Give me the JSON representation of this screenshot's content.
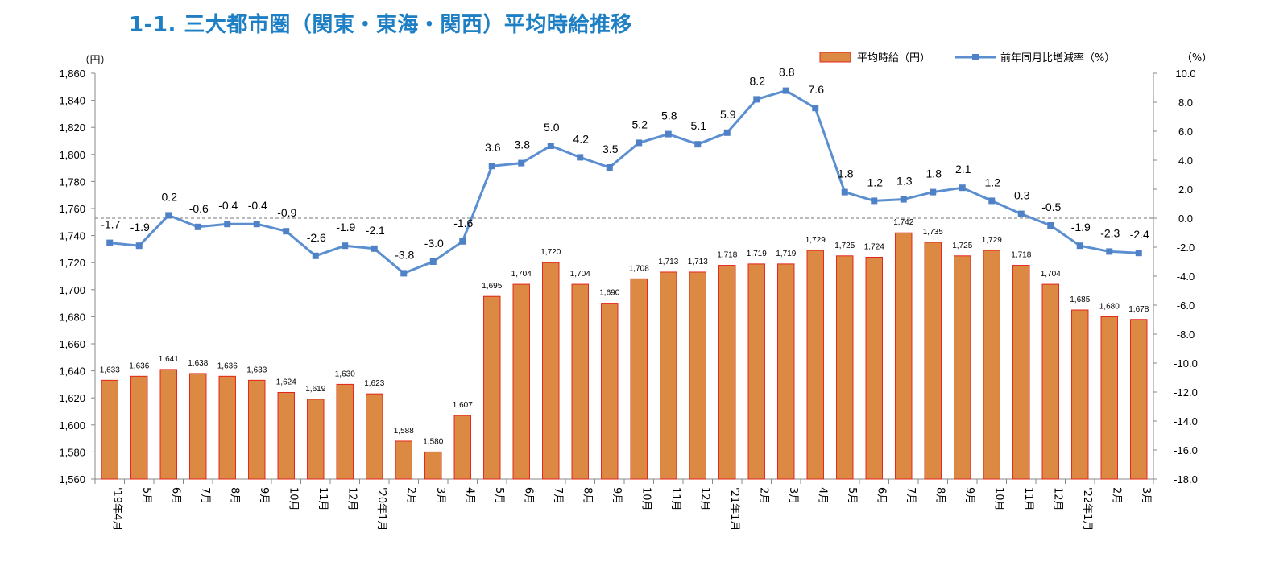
{
  "page": {
    "title": "1-1.  三大都市圏（関東・東海・関西）平均時給推移"
  },
  "chart_data": {
    "type": "bar",
    "title": "1-1.  三大都市圏（関東・東海・関西）平均時給推移",
    "left_unit": "（円）",
    "right_unit": "（%）",
    "categories": [
      "'19年4月",
      "5月",
      "6月",
      "7月",
      "8月",
      "9月",
      "10月",
      "11月",
      "12月",
      "'20年1月",
      "2月",
      "3月",
      "4月",
      "5月",
      "6月",
      "7月",
      "8月",
      "9月",
      "10月",
      "11月",
      "12月",
      "'21年1月",
      "2月",
      "3月",
      "4月",
      "5月",
      "6月",
      "7月",
      "8月",
      "9月",
      "10月",
      "11月",
      "12月",
      "'22年1月",
      "2月",
      "3月"
    ],
    "series": [
      {
        "name": "平均時給（円）",
        "type": "bar",
        "axis": "left",
        "color": "#dc8a43",
        "border": "#e3241b",
        "values": [
          1633,
          1636,
          1641,
          1638,
          1636,
          1633,
          1624,
          1619,
          1630,
          1623,
          1588,
          1580,
          1607,
          1695,
          1704,
          1720,
          1704,
          1690,
          1708,
          1713,
          1713,
          1718,
          1719,
          1719,
          1729,
          1725,
          1724,
          1742,
          1735,
          1725,
          1729,
          1718,
          1704,
          1685,
          1680,
          1678
        ],
        "labels": [
          "1,633",
          "1,636",
          "1,641",
          "1,638",
          "1,636",
          "1,633",
          "1,624",
          "1,619",
          "1,630",
          "1,623",
          "1,588",
          "1,580",
          "1,607",
          "1,695",
          "1,704",
          "1,720",
          "1,704",
          "1,690",
          "1,708",
          "1,713",
          "1,713",
          "1,718",
          "1,719",
          "1,719",
          "1,729",
          "1,725",
          "1,724",
          "1,742",
          "1,735",
          "1,725",
          "1,729",
          "1,718",
          "1,704",
          "1,685",
          "1,680",
          "1,678"
        ]
      },
      {
        "name": "前年同月比増減率（%）",
        "type": "line",
        "axis": "right",
        "color": "#5b8fd0",
        "values": [
          -1.7,
          -1.9,
          0.2,
          -0.6,
          -0.4,
          -0.4,
          -0.9,
          -2.6,
          -1.9,
          -2.1,
          -3.8,
          -3.0,
          -1.6,
          3.6,
          3.8,
          5.0,
          4.2,
          3.5,
          5.2,
          5.8,
          5.1,
          5.9,
          8.2,
          8.8,
          7.6,
          1.8,
          1.2,
          1.3,
          1.8,
          2.1,
          1.2,
          0.3,
          -0.5,
          -1.9,
          -2.3,
          -2.4
        ],
        "labels": [
          "-1.7",
          "-1.9",
          "0.2",
          "-0.6",
          "-0.4",
          "-0.4",
          "-0.9",
          "-2.6",
          "-1.9",
          "-2.1",
          "-3.8",
          "-3.0",
          "-1.6",
          "3.6",
          "3.8",
          "5.0",
          "4.2",
          "3.5",
          "5.2",
          "5.8",
          "5.1",
          "5.9",
          "8.2",
          "8.8",
          "7.6",
          "1.8",
          "1.2",
          "1.3",
          "1.8",
          "2.1",
          "1.2",
          "0.3",
          "-0.5",
          "-1.9",
          "-2.3",
          "-2.4"
        ]
      }
    ],
    "left_axis": {
      "ylim": [
        1560,
        1860
      ],
      "step": 20,
      "tick_labels": [
        "1,560",
        "1,580",
        "1,600",
        "1,620",
        "1,640",
        "1,660",
        "1,680",
        "1,700",
        "1,720",
        "1,740",
        "1,760",
        "1,780",
        "1,800",
        "1,820",
        "1,840",
        "1,860"
      ]
    },
    "right_axis": {
      "ylim": [
        -18,
        10
      ],
      "step": 2,
      "tick_labels": [
        "-18.0",
        "-16.0",
        "-14.0",
        "-12.0",
        "-10.0",
        "-8.0",
        "-6.0",
        "-4.0",
        "-2.0",
        "0.0",
        "2.0",
        "4.0",
        "6.0",
        "8.0",
        "10.0"
      ]
    },
    "zero_reference_line": "dashed",
    "grid": false,
    "legend_position": "top-right"
  }
}
